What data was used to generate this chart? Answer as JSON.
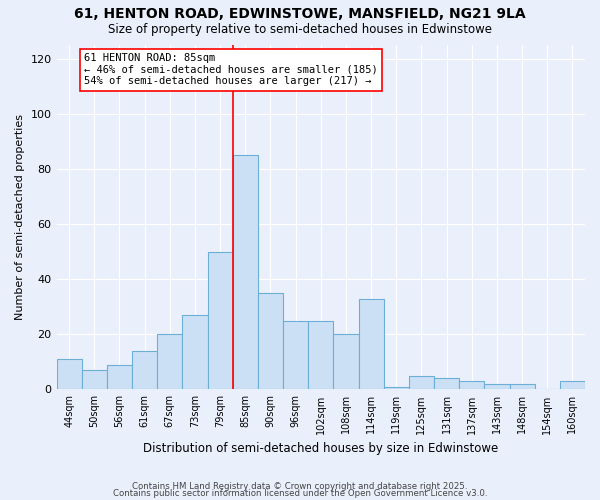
{
  "title": "61, HENTON ROAD, EDWINSTOWE, MANSFIELD, NG21 9LA",
  "subtitle": "Size of property relative to semi-detached houses in Edwinstowe",
  "xlabel": "Distribution of semi-detached houses by size in Edwinstowe",
  "ylabel": "Number of semi-detached properties",
  "categories": [
    "44sqm",
    "50sqm",
    "56sqm",
    "61sqm",
    "67sqm",
    "73sqm",
    "79sqm",
    "85sqm",
    "90sqm",
    "96sqm",
    "102sqm",
    "108sqm",
    "114sqm",
    "119sqm",
    "125sqm",
    "131sqm",
    "137sqm",
    "143sqm",
    "148sqm",
    "154sqm",
    "160sqm"
  ],
  "values": [
    11,
    7,
    9,
    14,
    20,
    27,
    50,
    85,
    35,
    25,
    25,
    20,
    33,
    1,
    5,
    4,
    3,
    2,
    2,
    0,
    3
  ],
  "bar_color": "#cce0f5",
  "bar_edgecolor": "#6baed6",
  "redline_index": 7,
  "redline_label": "61 HENTON ROAD: 85sqm",
  "annotation_line1": "← 46% of semi-detached houses are smaller (185)",
  "annotation_line2": "54% of semi-detached houses are larger (217) →",
  "ylim": [
    0,
    125
  ],
  "yticks": [
    0,
    20,
    40,
    60,
    80,
    100,
    120
  ],
  "background_color": "#eaf0fb",
  "footer_line1": "Contains HM Land Registry data © Crown copyright and database right 2025.",
  "footer_line2": "Contains public sector information licensed under the Open Government Licence v3.0."
}
